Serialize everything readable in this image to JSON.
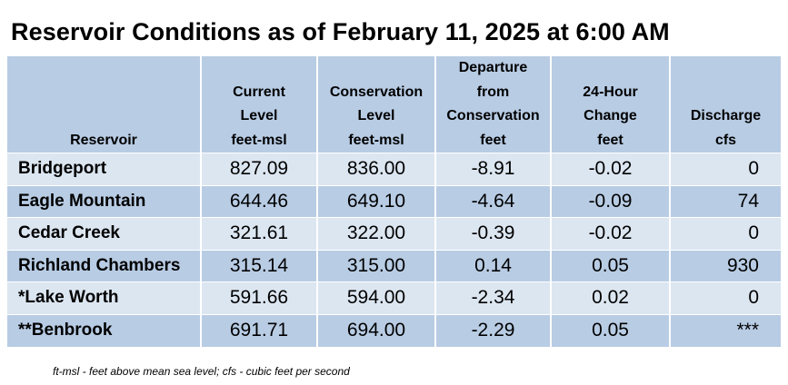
{
  "title": "Reservoir Conditions as of February 11, 2025 at 6:00 AM",
  "headers": {
    "reservoir": [
      "Reservoir"
    ],
    "current": [
      "Current",
      "Level",
      "feet-msl"
    ],
    "conservation": [
      "Conservation",
      "Level",
      "feet-msl"
    ],
    "departure": [
      "Departure",
      "from",
      "Conservation",
      "feet"
    ],
    "change": [
      "24-Hour",
      "Change",
      "feet"
    ],
    "discharge": [
      "Discharge",
      "cfs"
    ]
  },
  "rows": [
    {
      "name": "Bridgeport",
      "current": "827.09",
      "conservation": "836.00",
      "departure": "-8.91",
      "change": "-0.02",
      "discharge": "0"
    },
    {
      "name": "Eagle Mountain",
      "current": "644.46",
      "conservation": "649.10",
      "departure": "-4.64",
      "change": "-0.09",
      "discharge": "74"
    },
    {
      "name": "Cedar Creek",
      "current": "321.61",
      "conservation": "322.00",
      "departure": "-0.39",
      "change": "-0.02",
      "discharge": "0"
    },
    {
      "name": "Richland Chambers",
      "current": "315.14",
      "conservation": "315.00",
      "departure": "0.14",
      "change": "0.05",
      "discharge": "930"
    },
    {
      "name": "*Lake Worth",
      "current": "591.66",
      "conservation": "594.00",
      "departure": "-2.34",
      "change": "0.02",
      "discharge": "0"
    },
    {
      "name": "**Benbrook",
      "current": "691.71",
      "conservation": "694.00",
      "departure": "-2.29",
      "change": "0.05",
      "discharge": "***"
    }
  ],
  "footnote": "ft-msl - feet above mean sea level; cfs - cubic feet per second",
  "colors": {
    "header": "#b8cce4",
    "row_light": "#dce6f1",
    "row_dark": "#b8cce4"
  }
}
